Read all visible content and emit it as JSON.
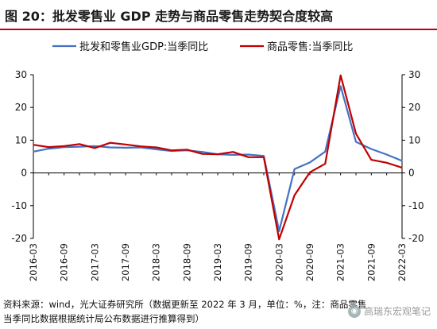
{
  "title": "图 20：批发零售业 GDP 走势与商品零售走势契合度较高",
  "source_note": {
    "line1": "资料来源：wind，光大证券研究所（数据更新至 2022 年 3 月，单位：%，注：商品零售",
    "line2": "当季同比数据根据统计局公布数据进行推算得到）"
  },
  "watermark": {
    "text": "高瑞东宏观笔记",
    "icon": "wechat-icon"
  },
  "chart_data": {
    "type": "line",
    "title": "",
    "xlabel": "",
    "ylabel": "",
    "ylim": [
      -20,
      30
    ],
    "yticks": [
      -20,
      -10,
      0,
      10,
      20,
      30
    ],
    "ylim_right": [
      -20,
      30
    ],
    "yticks_right": [
      -20,
      -10,
      0,
      10,
      20,
      30
    ],
    "grid": false,
    "legend_position": "top",
    "x": [
      "2016-03",
      "2016-06",
      "2016-09",
      "2016-12",
      "2017-03",
      "2017-06",
      "2017-09",
      "2017-12",
      "2018-03",
      "2018-06",
      "2018-09",
      "2018-12",
      "2019-03",
      "2019-06",
      "2019-09",
      "2019-12",
      "2020-03",
      "2020-06",
      "2020-09",
      "2020-12",
      "2021-03",
      "2021-06",
      "2021-09",
      "2021-12",
      "2022-03"
    ],
    "xtick_labels": [
      "2016-03",
      "2016-09",
      "2017-03",
      "2017-09",
      "2018-03",
      "2018-09",
      "2019-03",
      "2019-09",
      "2020-03",
      "2020-09",
      "2021-03",
      "2021-09",
      "2022-03"
    ],
    "series": [
      {
        "name": "批发和零售业GDP:当季同比",
        "color": "#4472c4",
        "values": [
          6.5,
          7.4,
          7.9,
          8.0,
          8.2,
          7.8,
          7.7,
          7.8,
          7.2,
          6.7,
          6.9,
          6.4,
          5.7,
          5.5,
          5.6,
          5.2,
          -17.8,
          1.2,
          3.2,
          6.5,
          26.5,
          9.5,
          7.3,
          5.6,
          3.7
        ]
      },
      {
        "name": "商品零售:当季同比",
        "color": "#c00000",
        "values": [
          8.6,
          7.9,
          8.2,
          8.8,
          7.6,
          9.2,
          8.7,
          8.1,
          7.8,
          6.9,
          7.1,
          5.8,
          5.7,
          6.4,
          4.8,
          4.8,
          -20.3,
          -6.8,
          0.2,
          2.8,
          29.8,
          12.0,
          4.0,
          3.1,
          1.6
        ]
      }
    ]
  }
}
